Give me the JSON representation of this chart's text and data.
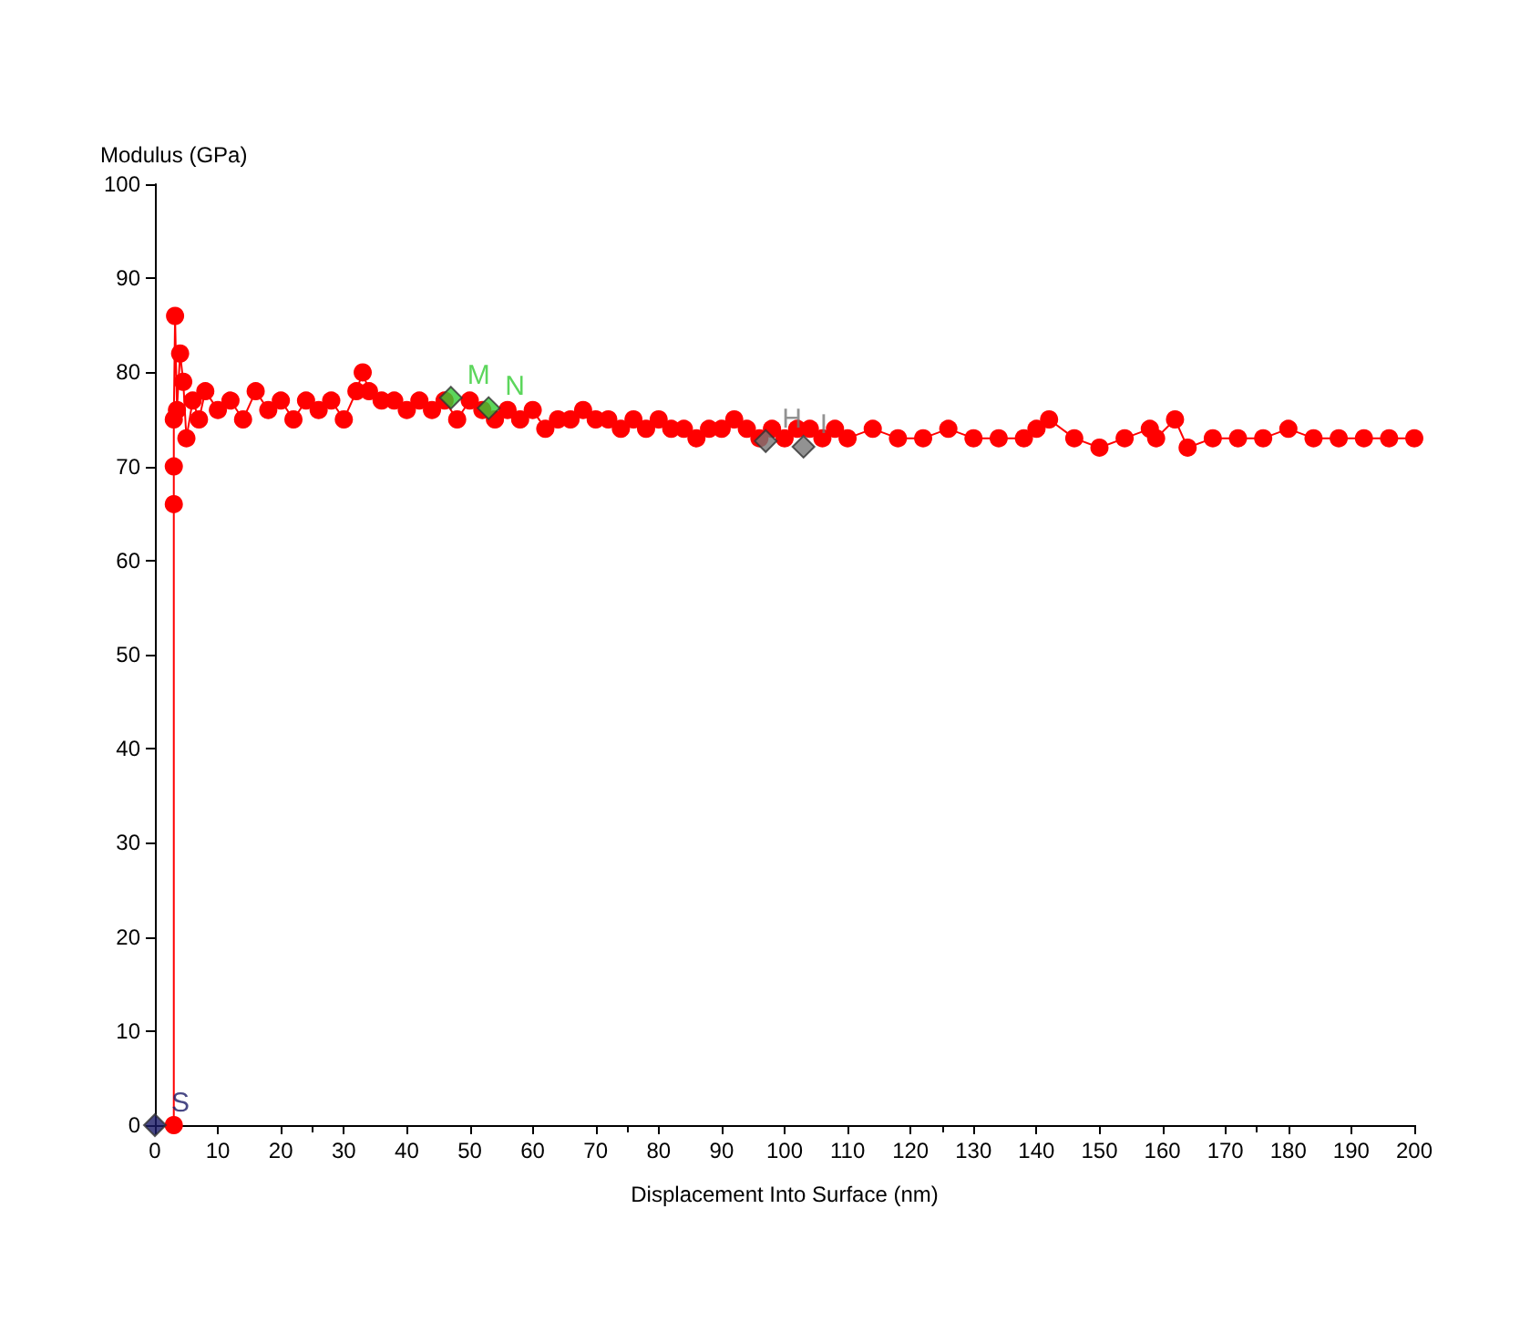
{
  "chart_data": {
    "type": "line",
    "xlabel": "Displacement Into Surface (nm)",
    "ylabel": "Modulus (GPa)",
    "xlim": [
      0,
      200
    ],
    "xticks": [
      0,
      10,
      20,
      30,
      40,
      50,
      60,
      70,
      80,
      90,
      100,
      110,
      120,
      130,
      140,
      150,
      160,
      170,
      180,
      190,
      200
    ],
    "ylim": [
      0,
      100
    ],
    "yticks": [
      0,
      10,
      20,
      30,
      40,
      50,
      60,
      70,
      80,
      90,
      100
    ],
    "grid": false,
    "marker": "circle",
    "line_style": "solid",
    "series": [
      {
        "color": "#ff0000",
        "x": [
          3,
          3,
          3,
          3,
          3.2,
          3.5,
          4,
          4.5,
          5,
          6,
          7,
          8,
          10,
          12,
          14,
          16,
          18,
          20,
          22,
          24,
          26,
          28,
          30,
          32,
          33,
          34,
          36,
          38,
          40,
          42,
          44,
          46,
          48,
          50,
          52,
          54,
          56,
          58,
          60,
          62,
          64,
          66,
          68,
          70,
          72,
          74,
          76,
          78,
          80,
          82,
          84,
          86,
          88,
          90,
          92,
          94,
          96,
          98,
          100,
          102,
          104,
          106,
          108,
          110,
          114,
          118,
          122,
          126,
          130,
          134,
          138,
          140,
          142,
          146,
          150,
          154,
          158,
          159,
          162,
          164,
          168,
          172,
          176,
          180,
          184,
          188,
          192,
          196,
          200
        ],
        "values": [
          0,
          66,
          70,
          75,
          86,
          76,
          82,
          79,
          73,
          77,
          75,
          78,
          76,
          77,
          75,
          78,
          76,
          77,
          75,
          77,
          76,
          77,
          75,
          78,
          80,
          78,
          77,
          77,
          76,
          77,
          76,
          77,
          75,
          77,
          76,
          75,
          76,
          75,
          76,
          74,
          75,
          75,
          76,
          75,
          75,
          74,
          75,
          74,
          75,
          74,
          74,
          73,
          74,
          74,
          75,
          74,
          73,
          74,
          73,
          74,
          74,
          73,
          74,
          73,
          74,
          73,
          73,
          74,
          73,
          73,
          73,
          74,
          75,
          73,
          72,
          73,
          74,
          73,
          75,
          72,
          73,
          73,
          73,
          74,
          73,
          73,
          73,
          73,
          73
        ]
      },
      {
        "type": "scatter",
        "color": "#33cc33",
        "marker": "diamond",
        "x": [
          47,
          53
        ],
        "values": [
          77.3,
          76.2
        ]
      },
      {
        "type": "scatter",
        "color": "#777777",
        "marker": "diamond",
        "x": [
          97,
          103
        ],
        "values": [
          72.7,
          72.1
        ]
      },
      {
        "type": "scatter",
        "color": "#1a1a66",
        "marker": "diamond",
        "x": [
          0
        ],
        "values": [
          0
        ]
      }
    ],
    "annotations": [
      {
        "text": "M",
        "x": 47,
        "y": 77.3
      },
      {
        "text": "N",
        "x": 53,
        "y": 76.2
      },
      {
        "text": "H",
        "x": 97,
        "y": 72.7
      },
      {
        "text": "I",
        "x": 103,
        "y": 72.1
      },
      {
        "text": "S",
        "x": 0,
        "y": 0
      }
    ]
  }
}
